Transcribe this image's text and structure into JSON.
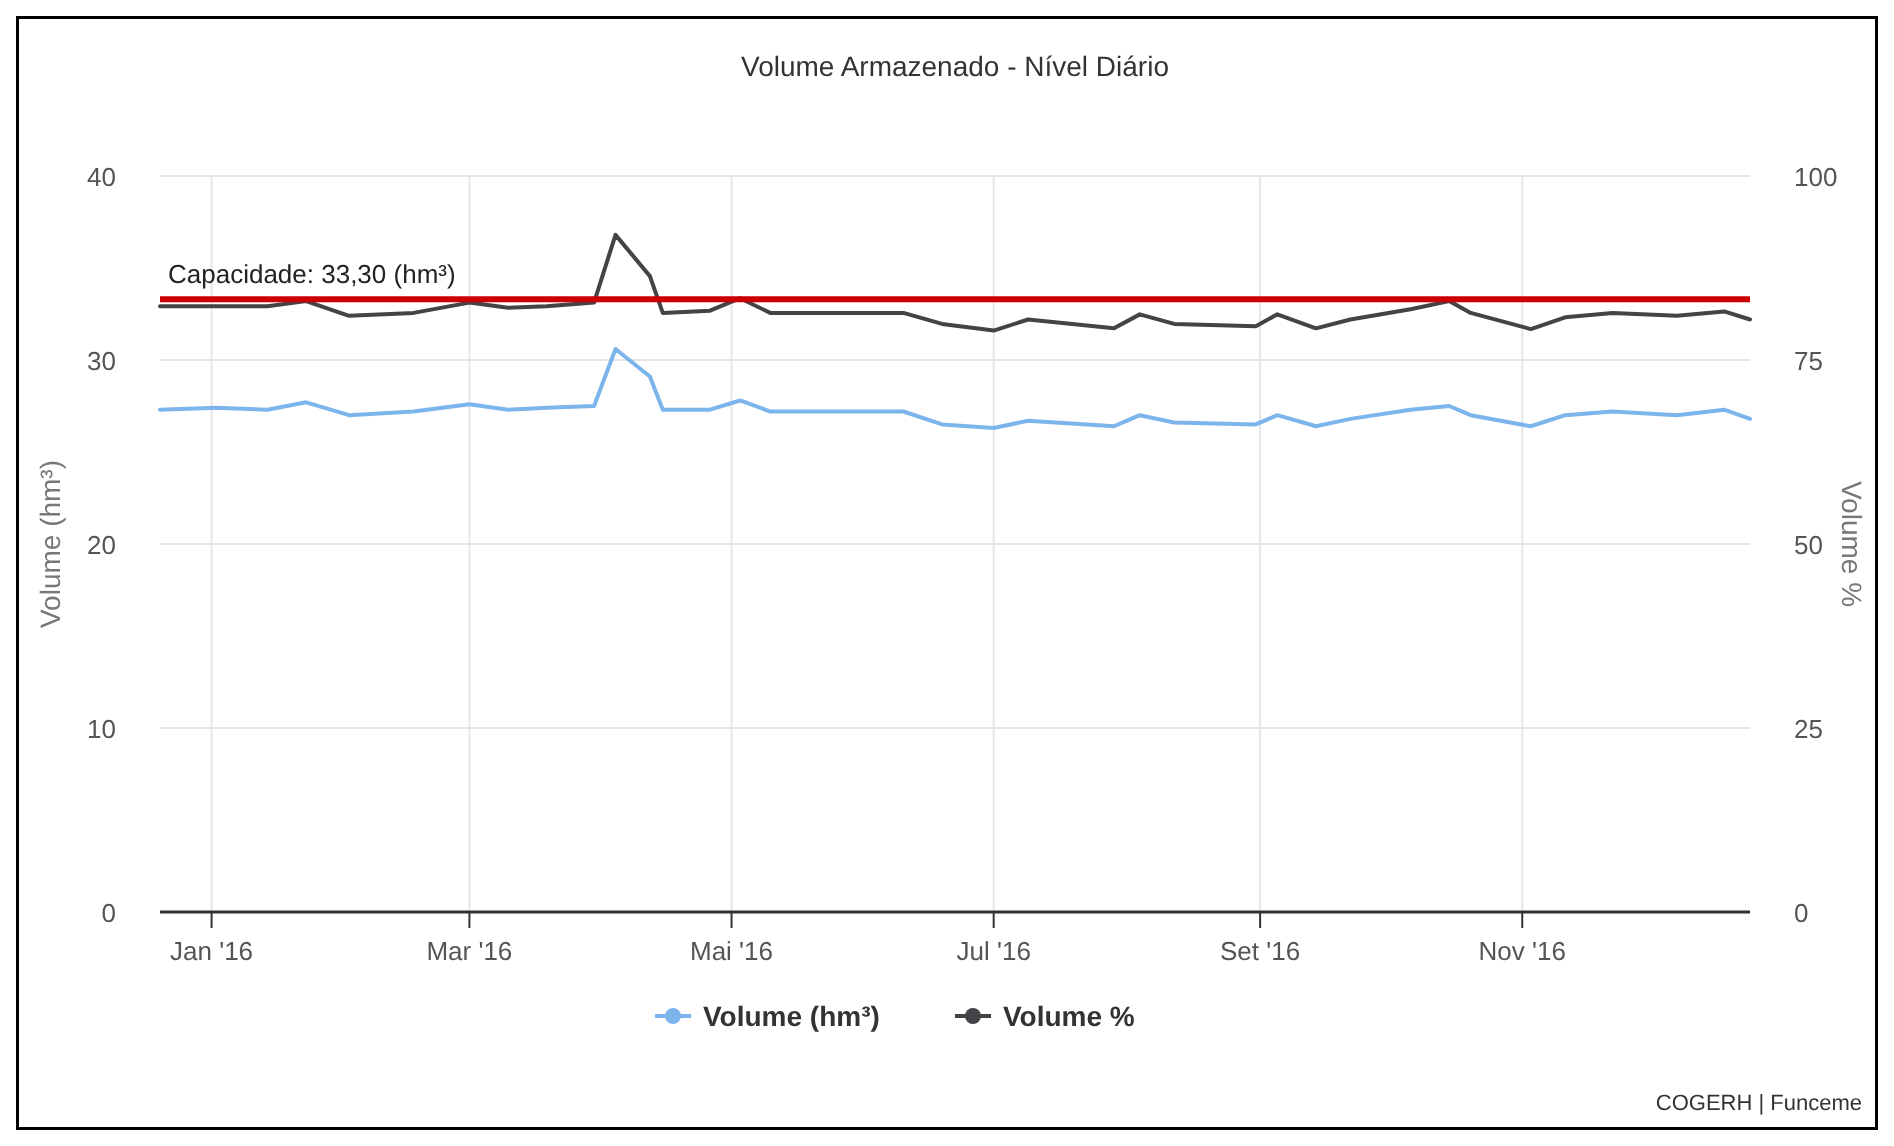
{
  "chart_data": {
    "type": "line",
    "title": "Volume Armazenado - Nível Diário",
    "ylabel": "Volume (hm³)",
    "y2label": "Volume %",
    "x": [
      "2015-12-20",
      "2016-01-02",
      "2016-01-14",
      "2016-01-23",
      "2016-02-02",
      "2016-02-17",
      "2016-03-01",
      "2016-03-10",
      "2016-03-19",
      "2016-03-30",
      "2016-04-04",
      "2016-04-12",
      "2016-04-15",
      "2016-04-26",
      "2016-05-03",
      "2016-05-10",
      "2016-05-25",
      "2016-06-10",
      "2016-06-19",
      "2016-07-01",
      "2016-07-09",
      "2016-07-29",
      "2016-08-04",
      "2016-08-12",
      "2016-08-31",
      "2016-09-05",
      "2016-09-14",
      "2016-09-22",
      "2016-10-06",
      "2016-10-15",
      "2016-10-20",
      "2016-11-03",
      "2016-11-11",
      "2016-11-22",
      "2016-12-07",
      "2016-12-18",
      "2016-12-24"
    ],
    "series": [
      {
        "name": "Volume (hm³)",
        "color": "#7cb5ec",
        "values": [
          27.3,
          27.4,
          27.3,
          27.7,
          27.0,
          27.2,
          27.6,
          27.3,
          27.4,
          27.5,
          30.6,
          29.1,
          27.3,
          27.3,
          27.8,
          27.2,
          27.2,
          27.2,
          26.5,
          26.3,
          26.7,
          26.4,
          27.0,
          26.6,
          26.5,
          27.0,
          26.4,
          26.8,
          27.3,
          27.5,
          27.0,
          26.4,
          27.0,
          27.2,
          27.0,
          27.3,
          26.8
        ]
      },
      {
        "name": "Volume %",
        "color": "#434348",
        "axis": "y2",
        "values": [
          82.3,
          82.3,
          82.3,
          83.0,
          81.0,
          81.4,
          82.8,
          82.1,
          82.3,
          82.8,
          92.0,
          86.4,
          81.4,
          81.7,
          83.4,
          81.4,
          81.4,
          81.4,
          79.9,
          79.0,
          80.5,
          79.3,
          81.2,
          79.9,
          79.6,
          81.2,
          79.3,
          80.5,
          81.9,
          83.0,
          81.4,
          79.2,
          80.8,
          81.4,
          81.0,
          81.6,
          80.5
        ]
      }
    ],
    "xlim": [
      "2015-12-20",
      "2016-12-24"
    ],
    "xticks": [
      {
        "value": "2016-01-01",
        "label": "Jan '16"
      },
      {
        "value": "2016-03-01",
        "label": "Mar '16"
      },
      {
        "value": "2016-05-01",
        "label": "Mai '16"
      },
      {
        "value": "2016-07-01",
        "label": "Jul '16"
      },
      {
        "value": "2016-09-01",
        "label": "Set '16"
      },
      {
        "value": "2016-11-01",
        "label": "Nov '16"
      }
    ],
    "ylim": [
      0,
      40
    ],
    "yticks": [
      0,
      10,
      20,
      30,
      40
    ],
    "y2lim": [
      0,
      100
    ],
    "y2ticks": [
      0,
      25,
      50,
      75,
      100
    ],
    "ref_lines": [
      {
        "axis": "y",
        "value": 33.3,
        "label": "Capacidade: 33,30 (hm³)",
        "color": "#cc0000"
      }
    ],
    "annotations": [
      "COGERH | Funceme"
    ],
    "grid": true,
    "legend": "bottom"
  }
}
